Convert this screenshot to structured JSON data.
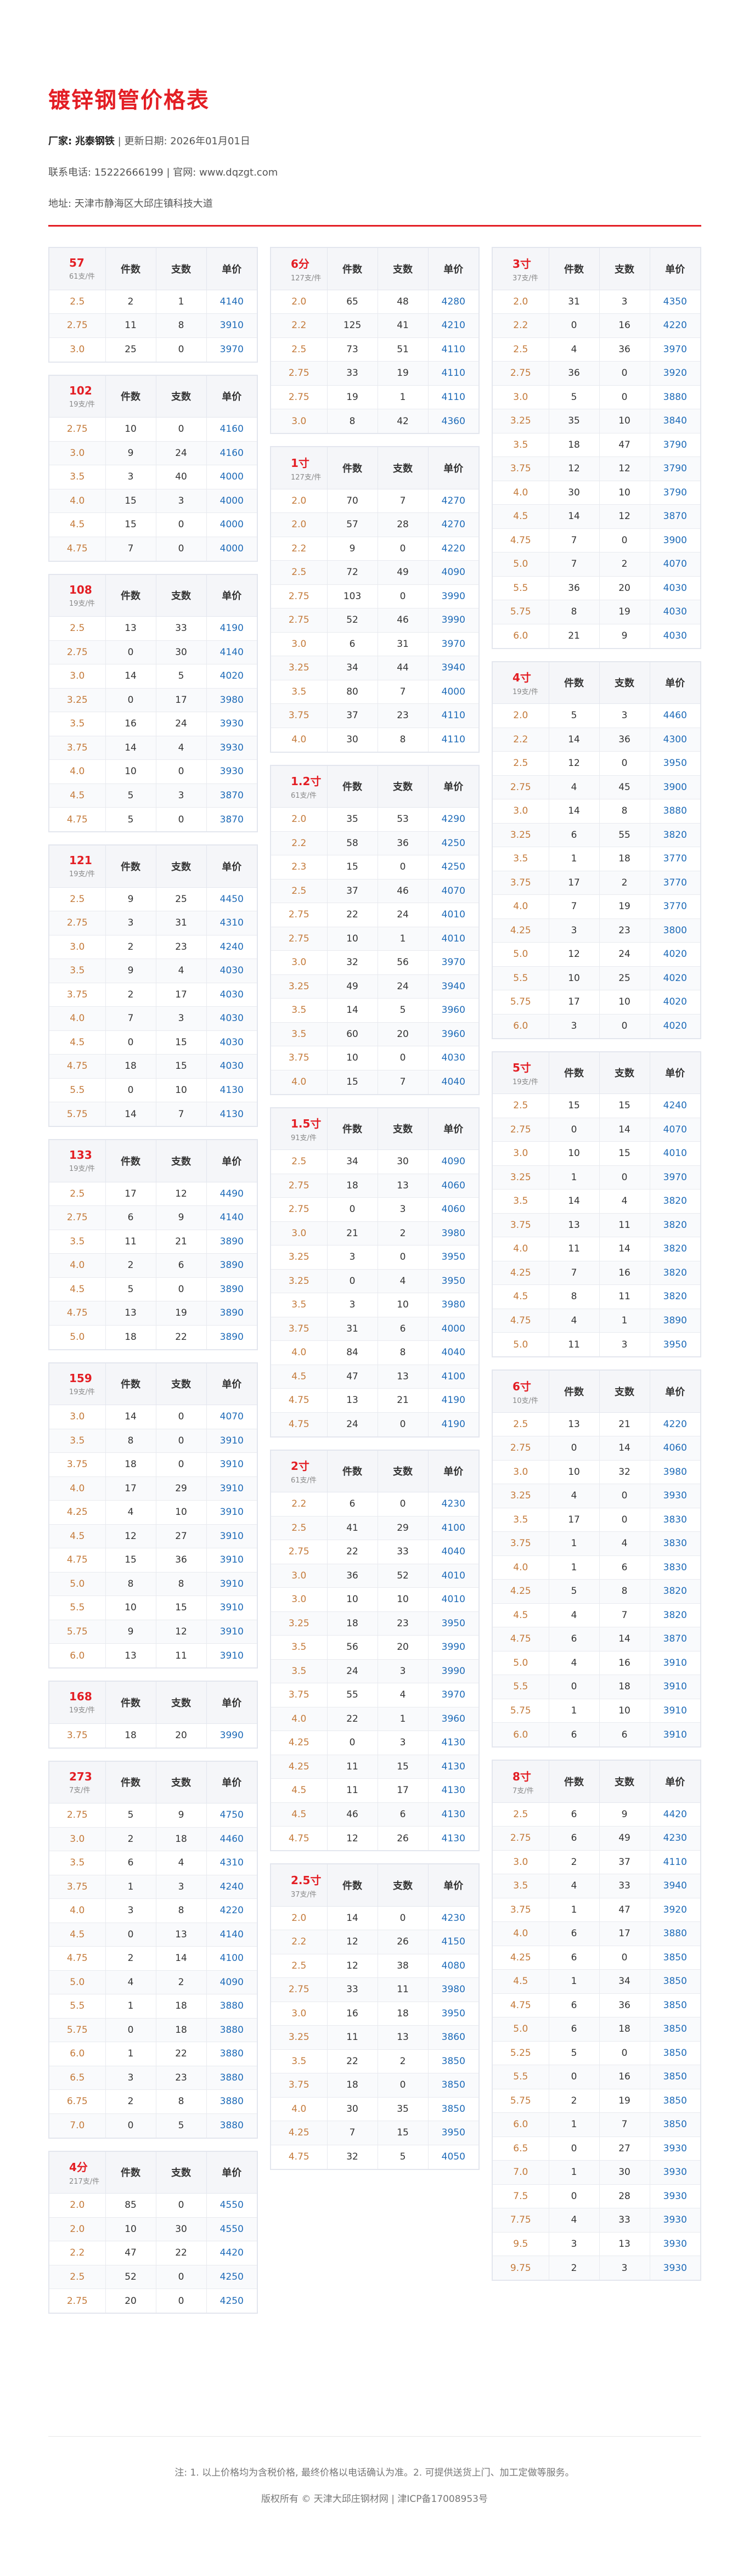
{
  "header": {
    "title": "镀锌钢管价格表",
    "maker_label": "厂家:",
    "maker": "兆泰钢铁",
    "date_label": "| 更新日期:",
    "date": "2026年01月01日",
    "contact": "联系电话: 15222666199 | 官网: www.dqzgt.com",
    "address": "地址: 天津市静海区大邱庄镇科技大道"
  },
  "columns_labels": {
    "pieces": "件数",
    "count": "支数",
    "price": "单价"
  },
  "tables": [
    {
      "size": "57",
      "per": "61支/件",
      "rows": [
        [
          "2.5",
          "2",
          "1",
          "4140"
        ],
        [
          "2.75",
          "11",
          "8",
          "3910"
        ],
        [
          "3.0",
          "25",
          "0",
          "3970"
        ]
      ]
    },
    {
      "size": "102",
      "per": "19支/件",
      "rows": [
        [
          "2.75",
          "10",
          "0",
          "4160"
        ],
        [
          "3.0",
          "9",
          "24",
          "4160"
        ],
        [
          "3.5",
          "3",
          "40",
          "4000"
        ],
        [
          "4.0",
          "15",
          "3",
          "4000"
        ],
        [
          "4.5",
          "15",
          "0",
          "4000"
        ],
        [
          "4.75",
          "7",
          "0",
          "4000"
        ]
      ]
    },
    {
      "size": "108",
      "per": "19支/件",
      "rows": [
        [
          "2.5",
          "13",
          "33",
          "4190"
        ],
        [
          "2.75",
          "0",
          "30",
          "4140"
        ],
        [
          "3.0",
          "14",
          "5",
          "4020"
        ],
        [
          "3.25",
          "0",
          "17",
          "3980"
        ],
        [
          "3.5",
          "16",
          "24",
          "3930"
        ],
        [
          "3.75",
          "14",
          "4",
          "3930"
        ],
        [
          "4.0",
          "10",
          "0",
          "3930"
        ],
        [
          "4.5",
          "5",
          "3",
          "3870"
        ],
        [
          "4.75",
          "5",
          "0",
          "3870"
        ]
      ]
    },
    {
      "size": "121",
      "per": "19支/件",
      "rows": [
        [
          "2.5",
          "9",
          "25",
          "4450"
        ],
        [
          "2.75",
          "3",
          "31",
          "4310"
        ],
        [
          "3.0",
          "2",
          "23",
          "4240"
        ],
        [
          "3.5",
          "9",
          "4",
          "4030"
        ],
        [
          "3.75",
          "2",
          "17",
          "4030"
        ],
        [
          "4.0",
          "7",
          "3",
          "4030"
        ],
        [
          "4.5",
          "0",
          "15",
          "4030"
        ],
        [
          "4.75",
          "18",
          "15",
          "4030"
        ],
        [
          "5.5",
          "0",
          "10",
          "4130"
        ],
        [
          "5.75",
          "14",
          "7",
          "4130"
        ]
      ]
    },
    {
      "size": "133",
      "per": "19支/件",
      "rows": [
        [
          "2.5",
          "17",
          "12",
          "4490"
        ],
        [
          "2.75",
          "6",
          "9",
          "4140"
        ],
        [
          "3.5",
          "11",
          "21",
          "3890"
        ],
        [
          "4.0",
          "2",
          "6",
          "3890"
        ],
        [
          "4.5",
          "5",
          "0",
          "3890"
        ],
        [
          "4.75",
          "13",
          "19",
          "3890"
        ],
        [
          "5.0",
          "18",
          "22",
          "3890"
        ]
      ]
    },
    {
      "size": "159",
      "per": "19支/件",
      "rows": [
        [
          "3.0",
          "14",
          "0",
          "4070"
        ],
        [
          "3.5",
          "8",
          "0",
          "3910"
        ],
        [
          "3.75",
          "18",
          "0",
          "3910"
        ],
        [
          "4.0",
          "17",
          "29",
          "3910"
        ],
        [
          "4.25",
          "4",
          "10",
          "3910"
        ],
        [
          "4.5",
          "12",
          "27",
          "3910"
        ],
        [
          "4.75",
          "15",
          "36",
          "3910"
        ],
        [
          "5.0",
          "8",
          "8",
          "3910"
        ],
        [
          "5.5",
          "10",
          "15",
          "3910"
        ],
        [
          "5.75",
          "9",
          "12",
          "3910"
        ],
        [
          "6.0",
          "13",
          "11",
          "3910"
        ]
      ]
    },
    {
      "size": "168",
      "per": "19支/件",
      "rows": [
        [
          "3.75",
          "18",
          "20",
          "3990"
        ]
      ]
    },
    {
      "size": "273",
      "per": "7支/件",
      "rows": [
        [
          "2.75",
          "5",
          "9",
          "4750"
        ],
        [
          "3.0",
          "2",
          "18",
          "4460"
        ],
        [
          "3.5",
          "6",
          "4",
          "4310"
        ],
        [
          "3.75",
          "1",
          "3",
          "4240"
        ],
        [
          "4.0",
          "3",
          "8",
          "4220"
        ],
        [
          "4.5",
          "0",
          "13",
          "4140"
        ],
        [
          "4.75",
          "2",
          "14",
          "4100"
        ],
        [
          "5.0",
          "4",
          "2",
          "4090"
        ],
        [
          "5.5",
          "1",
          "18",
          "3880"
        ],
        [
          "5.75",
          "0",
          "18",
          "3880"
        ],
        [
          "6.0",
          "1",
          "22",
          "3880"
        ],
        [
          "6.5",
          "3",
          "23",
          "3880"
        ],
        [
          "6.75",
          "2",
          "8",
          "3880"
        ],
        [
          "7.0",
          "0",
          "5",
          "3880"
        ]
      ]
    },
    {
      "size": "4分",
      "per": "217支/件",
      "rows": [
        [
          "2.0",
          "85",
          "0",
          "4550"
        ],
        [
          "2.0",
          "10",
          "30",
          "4550"
        ],
        [
          "2.2",
          "47",
          "22",
          "4420"
        ],
        [
          "2.5",
          "52",
          "0",
          "4250"
        ],
        [
          "2.75",
          "20",
          "0",
          "4250"
        ]
      ]
    },
    {
      "size": "6分",
      "per": "127支/件",
      "rows": [
        [
          "2.0",
          "65",
          "48",
          "4280"
        ],
        [
          "2.2",
          "125",
          "41",
          "4210"
        ],
        [
          "2.5",
          "73",
          "51",
          "4110"
        ],
        [
          "2.75",
          "33",
          "19",
          "4110"
        ],
        [
          "2.75",
          "19",
          "1",
          "4110"
        ],
        [
          "3.0",
          "8",
          "42",
          "4360"
        ]
      ]
    },
    {
      "size": "1寸",
      "per": "127支/件",
      "rows": [
        [
          "2.0",
          "70",
          "7",
          "4270"
        ],
        [
          "2.0",
          "57",
          "28",
          "4270"
        ],
        [
          "2.2",
          "9",
          "0",
          "4220"
        ],
        [
          "2.5",
          "72",
          "49",
          "4090"
        ],
        [
          "2.75",
          "103",
          "0",
          "3990"
        ],
        [
          "2.75",
          "52",
          "46",
          "3990"
        ],
        [
          "3.0",
          "6",
          "31",
          "3970"
        ],
        [
          "3.25",
          "34",
          "44",
          "3940"
        ],
        [
          "3.5",
          "80",
          "7",
          "4000"
        ],
        [
          "3.75",
          "37",
          "23",
          "4110"
        ],
        [
          "4.0",
          "30",
          "8",
          "4110"
        ]
      ]
    },
    {
      "size": "1.2寸",
      "per": "61支/件",
      "rows": [
        [
          "2.0",
          "35",
          "53",
          "4290"
        ],
        [
          "2.2",
          "58",
          "36",
          "4250"
        ],
        [
          "2.3",
          "15",
          "0",
          "4250"
        ],
        [
          "2.5",
          "37",
          "46",
          "4070"
        ],
        [
          "2.75",
          "22",
          "24",
          "4010"
        ],
        [
          "2.75",
          "10",
          "1",
          "4010"
        ],
        [
          "3.0",
          "32",
          "56",
          "3970"
        ],
        [
          "3.25",
          "49",
          "24",
          "3940"
        ],
        [
          "3.5",
          "14",
          "5",
          "3960"
        ],
        [
          "3.5",
          "60",
          "20",
          "3960"
        ],
        [
          "3.75",
          "10",
          "0",
          "4030"
        ],
        [
          "4.0",
          "15",
          "7",
          "4040"
        ]
      ]
    },
    {
      "size": "1.5寸",
      "per": "91支/件",
      "rows": [
        [
          "2.5",
          "34",
          "30",
          "4090"
        ],
        [
          "2.75",
          "18",
          "13",
          "4060"
        ],
        [
          "2.75",
          "0",
          "3",
          "4060"
        ],
        [
          "3.0",
          "21",
          "2",
          "3980"
        ],
        [
          "3.25",
          "3",
          "0",
          "3950"
        ],
        [
          "3.25",
          "0",
          "4",
          "3950"
        ],
        [
          "3.5",
          "3",
          "10",
          "3980"
        ],
        [
          "3.75",
          "31",
          "6",
          "4000"
        ],
        [
          "4.0",
          "84",
          "8",
          "4040"
        ],
        [
          "4.5",
          "47",
          "13",
          "4100"
        ],
        [
          "4.75",
          "13",
          "21",
          "4190"
        ],
        [
          "4.75",
          "24",
          "0",
          "4190"
        ]
      ]
    },
    {
      "size": "2寸",
      "per": "61支/件",
      "rows": [
        [
          "2.2",
          "6",
          "0",
          "4230"
        ],
        [
          "2.5",
          "41",
          "29",
          "4100"
        ],
        [
          "2.75",
          "22",
          "33",
          "4040"
        ],
        [
          "3.0",
          "36",
          "52",
          "4010"
        ],
        [
          "3.0",
          "10",
          "10",
          "4010"
        ],
        [
          "3.25",
          "18",
          "23",
          "3950"
        ],
        [
          "3.5",
          "56",
          "20",
          "3990"
        ],
        [
          "3.5",
          "24",
          "3",
          "3990"
        ],
        [
          "3.75",
          "55",
          "4",
          "3970"
        ],
        [
          "4.0",
          "22",
          "1",
          "3960"
        ],
        [
          "4.25",
          "0",
          "3",
          "4130"
        ],
        [
          "4.25",
          "11",
          "15",
          "4130"
        ],
        [
          "4.5",
          "11",
          "17",
          "4130"
        ],
        [
          "4.5",
          "46",
          "6",
          "4130"
        ],
        [
          "4.75",
          "12",
          "26",
          "4130"
        ]
      ]
    },
    {
      "size": "2.5寸",
      "per": "37支/件",
      "rows": [
        [
          "2.0",
          "14",
          "0",
          "4230"
        ],
        [
          "2.2",
          "12",
          "26",
          "4150"
        ],
        [
          "2.5",
          "12",
          "38",
          "4080"
        ],
        [
          "2.75",
          "33",
          "11",
          "3980"
        ],
        [
          "3.0",
          "16",
          "18",
          "3950"
        ],
        [
          "3.25",
          "11",
          "13",
          "3860"
        ],
        [
          "3.5",
          "22",
          "2",
          "3850"
        ],
        [
          "3.75",
          "18",
          "0",
          "3850"
        ],
        [
          "4.0",
          "30",
          "35",
          "3850"
        ],
        [
          "4.25",
          "7",
          "15",
          "3950"
        ],
        [
          "4.75",
          "32",
          "5",
          "4050"
        ]
      ]
    },
    {
      "size": "3寸",
      "per": "37支/件",
      "rows": [
        [
          "2.0",
          "31",
          "3",
          "4350"
        ],
        [
          "2.2",
          "0",
          "16",
          "4220"
        ],
        [
          "2.5",
          "4",
          "36",
          "3970"
        ],
        [
          "2.75",
          "36",
          "0",
          "3920"
        ],
        [
          "3.0",
          "5",
          "0",
          "3880"
        ],
        [
          "3.25",
          "35",
          "10",
          "3840"
        ],
        [
          "3.5",
          "18",
          "47",
          "3790"
        ],
        [
          "3.75",
          "12",
          "12",
          "3790"
        ],
        [
          "4.0",
          "30",
          "10",
          "3790"
        ],
        [
          "4.5",
          "14",
          "12",
          "3870"
        ],
        [
          "4.75",
          "7",
          "0",
          "3900"
        ],
        [
          "5.0",
          "7",
          "2",
          "4070"
        ],
        [
          "5.5",
          "36",
          "20",
          "4030"
        ],
        [
          "5.75",
          "8",
          "19",
          "4030"
        ],
        [
          "6.0",
          "21",
          "9",
          "4030"
        ]
      ]
    },
    {
      "size": "4寸",
      "per": "19支/件",
      "rows": [
        [
          "2.0",
          "5",
          "3",
          "4460"
        ],
        [
          "2.2",
          "14",
          "36",
          "4300"
        ],
        [
          "2.5",
          "12",
          "0",
          "3950"
        ],
        [
          "2.75",
          "4",
          "45",
          "3900"
        ],
        [
          "3.0",
          "14",
          "8",
          "3880"
        ],
        [
          "3.25",
          "6",
          "55",
          "3820"
        ],
        [
          "3.5",
          "1",
          "18",
          "3770"
        ],
        [
          "3.75",
          "17",
          "2",
          "3770"
        ],
        [
          "4.0",
          "7",
          "19",
          "3770"
        ],
        [
          "4.25",
          "3",
          "23",
          "3800"
        ],
        [
          "5.0",
          "12",
          "24",
          "4020"
        ],
        [
          "5.5",
          "10",
          "25",
          "4020"
        ],
        [
          "5.75",
          "17",
          "10",
          "4020"
        ],
        [
          "6.0",
          "3",
          "0",
          "4020"
        ]
      ]
    },
    {
      "size": "5寸",
      "per": "19支/件",
      "rows": [
        [
          "2.5",
          "15",
          "15",
          "4240"
        ],
        [
          "2.75",
          "0",
          "14",
          "4070"
        ],
        [
          "3.0",
          "10",
          "15",
          "4010"
        ],
        [
          "3.25",
          "1",
          "0",
          "3970"
        ],
        [
          "3.5",
          "14",
          "4",
          "3820"
        ],
        [
          "3.75",
          "13",
          "11",
          "3820"
        ],
        [
          "4.0",
          "11",
          "14",
          "3820"
        ],
        [
          "4.25",
          "7",
          "16",
          "3820"
        ],
        [
          "4.5",
          "8",
          "11",
          "3820"
        ],
        [
          "4.75",
          "4",
          "1",
          "3890"
        ],
        [
          "5.0",
          "11",
          "3",
          "3950"
        ]
      ]
    },
    {
      "size": "6寸",
      "per": "10支/件",
      "rows": [
        [
          "2.5",
          "13",
          "21",
          "4220"
        ],
        [
          "2.75",
          "0",
          "14",
          "4060"
        ],
        [
          "3.0",
          "10",
          "32",
          "3980"
        ],
        [
          "3.25",
          "4",
          "0",
          "3930"
        ],
        [
          "3.5",
          "17",
          "0",
          "3830"
        ],
        [
          "3.75",
          "1",
          "4",
          "3830"
        ],
        [
          "4.0",
          "1",
          "6",
          "3830"
        ],
        [
          "4.25",
          "5",
          "8",
          "3820"
        ],
        [
          "4.5",
          "4",
          "7",
          "3820"
        ],
        [
          "4.75",
          "6",
          "14",
          "3870"
        ],
        [
          "5.0",
          "4",
          "16",
          "3910"
        ],
        [
          "5.5",
          "0",
          "18",
          "3910"
        ],
        [
          "5.75",
          "1",
          "10",
          "3910"
        ],
        [
          "6.0",
          "6",
          "6",
          "3910"
        ]
      ]
    },
    {
      "size": "8寸",
      "per": "7支/件",
      "rows": [
        [
          "2.5",
          "6",
          "9",
          "4420"
        ],
        [
          "2.75",
          "6",
          "49",
          "4230"
        ],
        [
          "3.0",
          "2",
          "37",
          "4110"
        ],
        [
          "3.5",
          "4",
          "33",
          "3940"
        ],
        [
          "3.75",
          "1",
          "47",
          "3920"
        ],
        [
          "4.0",
          "6",
          "17",
          "3880"
        ],
        [
          "4.25",
          "6",
          "0",
          "3850"
        ],
        [
          "4.5",
          "1",
          "34",
          "3850"
        ],
        [
          "4.75",
          "6",
          "36",
          "3850"
        ],
        [
          "5.0",
          "6",
          "18",
          "3850"
        ],
        [
          "5.25",
          "5",
          "0",
          "3850"
        ],
        [
          "5.5",
          "0",
          "16",
          "3850"
        ],
        [
          "5.75",
          "2",
          "19",
          "3850"
        ],
        [
          "6.0",
          "1",
          "7",
          "3850"
        ],
        [
          "6.5",
          "0",
          "27",
          "3930"
        ],
        [
          "7.0",
          "1",
          "30",
          "3930"
        ],
        [
          "7.5",
          "0",
          "28",
          "3930"
        ],
        [
          "7.75",
          "4",
          "33",
          "3930"
        ],
        [
          "9.5",
          "3",
          "13",
          "3930"
        ],
        [
          "9.75",
          "2",
          "3",
          "3930"
        ]
      ]
    }
  ],
  "footer": {
    "note": "注: 1. 以上价格均为含税价格, 最终价格以电话确认为准。2. 可提供送货上门、加工定做等服务。",
    "copyright": "版权所有 © 天津大邱庄钢材网 | 津ICP备17008953号"
  }
}
